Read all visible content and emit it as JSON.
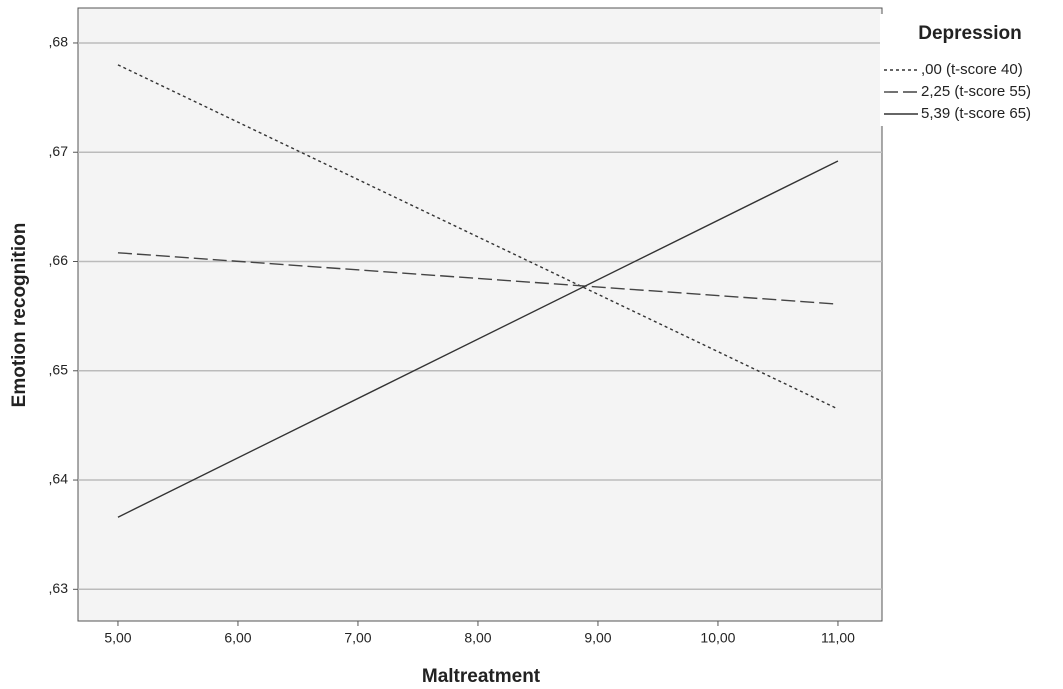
{
  "chart_data": {
    "type": "line",
    "x_label": "Maltreatment",
    "y_label": "Emotion recognition",
    "legend_title": "Depression",
    "legend_position": "top-right",
    "grid": true,
    "x": [
      5,
      11
    ],
    "xlim": [
      4.667,
      11.367
    ],
    "xticks": [
      {
        "value": 5,
        "label": "5,00"
      },
      {
        "value": 6,
        "label": "6,00"
      },
      {
        "value": 7,
        "label": "7,00"
      },
      {
        "value": 8,
        "label": "8,00"
      },
      {
        "value": 9,
        "label": "9,00"
      },
      {
        "value": 10,
        "label": "10,00"
      },
      {
        "value": 11,
        "label": "11,00"
      }
    ],
    "ylim": [
      0.6271,
      0.6832
    ],
    "yticks": [
      {
        "value": 0.63,
        "label": ",63"
      },
      {
        "value": 0.64,
        "label": ",64"
      },
      {
        "value": 0.65,
        "label": ",65"
      },
      {
        "value": 0.66,
        "label": ",66"
      },
      {
        "value": 0.67,
        "label": ",67"
      },
      {
        "value": 0.68,
        "label": ",68"
      }
    ],
    "series": [
      {
        "name": ",00 (t-score 40)",
        "color": "#333333",
        "line_style": "dotted",
        "values": [
          0.678,
          0.6465
        ]
      },
      {
        "name": "2,25 (t-score 55)",
        "color": "#444444",
        "line_style": "dashed",
        "values": [
          0.6608,
          0.6561
        ]
      },
      {
        "name": "5,39 (t-score 65)",
        "color": "#333333",
        "line_style": "solid",
        "values": [
          0.6366,
          0.6692
        ]
      }
    ]
  }
}
